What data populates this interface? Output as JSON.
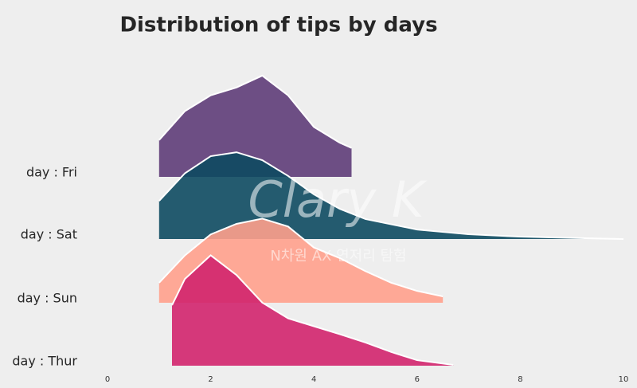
{
  "chart_data": {
    "type": "ridgeline",
    "title": "Distribution of tips by days",
    "xlim": [
      0,
      10
    ],
    "xticks": [
      0,
      2,
      4,
      6,
      8,
      10
    ],
    "series": [
      {
        "name": "day : Fri",
        "color": "#5e3c78",
        "x": [
          1,
          1.5,
          2,
          2.5,
          3,
          3.5,
          4,
          4.5,
          4.73
        ],
        "values": [
          0.14,
          0.25,
          0.31,
          0.34,
          0.385,
          0.31,
          0.19,
          0.13,
          0.11
        ]
      },
      {
        "name": "day : Sat",
        "color": "#0d4a60",
        "x": [
          1,
          1.5,
          2,
          2.5,
          3,
          3.5,
          4,
          4.5,
          5,
          6,
          7,
          8,
          9,
          10
        ],
        "values": [
          0.145,
          0.25,
          0.315,
          0.33,
          0.3,
          0.24,
          0.17,
          0.115,
          0.076,
          0.036,
          0.018,
          0.009,
          0.004,
          0
        ]
      },
      {
        "name": "day : Sun",
        "color": "#ffa08c",
        "x": [
          1,
          1.5,
          2,
          2.5,
          3,
          3.5,
          4,
          4.5,
          5,
          5.5,
          6,
          6.5
        ],
        "values": [
          0.076,
          0.18,
          0.26,
          0.3,
          0.32,
          0.29,
          0.21,
          0.17,
          0.12,
          0.076,
          0.045,
          0.024
        ]
      },
      {
        "name": "day : Thur",
        "color": "#d1246d",
        "x": [
          1.25,
          1.5,
          2,
          2.5,
          3,
          3.5,
          4,
          4.5,
          5,
          5.5,
          6,
          6.7
        ],
        "values": [
          0.23,
          0.33,
          0.42,
          0.345,
          0.24,
          0.18,
          0.15,
          0.12,
          0.088,
          0.052,
          0.021,
          0.003
        ]
      }
    ],
    "watermark": [
      "Clary K",
      "N차원 AX 연저리 탐험"
    ]
  }
}
